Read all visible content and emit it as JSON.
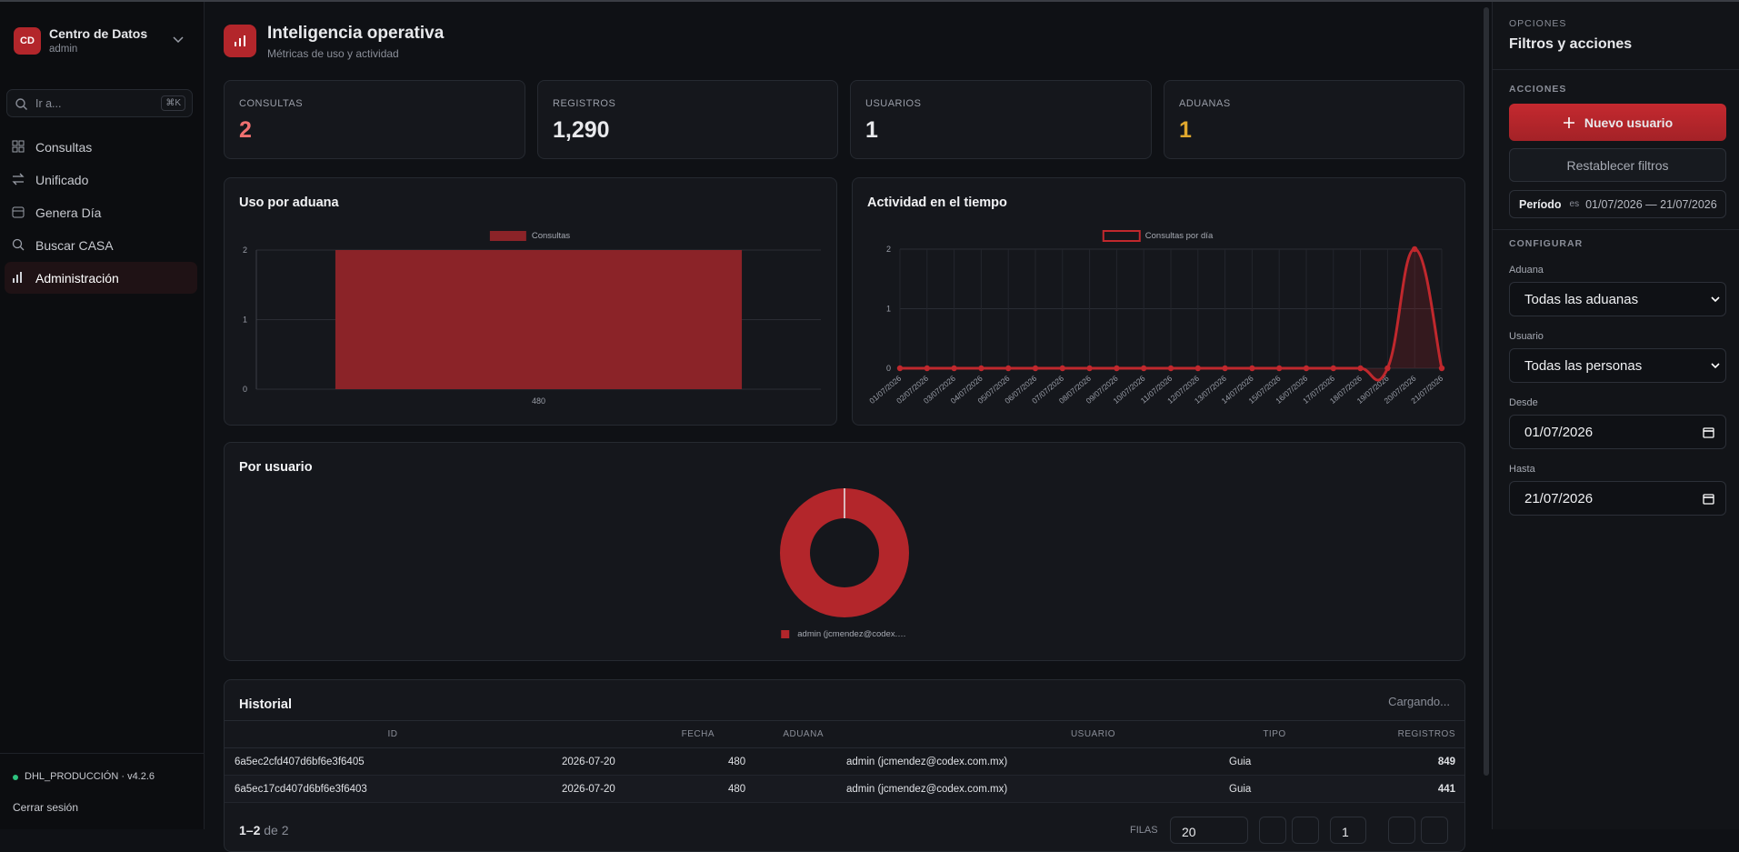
{
  "sidebar": {
    "logo": "CD",
    "title": "Centro de Datos",
    "subtitle": "admin",
    "search": {
      "placeholder": "Ir a...",
      "shortcut": "⌘K"
    },
    "nav": [
      "Consultas",
      "Unificado",
      "Genera Día",
      "Buscar CASA",
      "Administración"
    ],
    "env": "DHL_PRODUCCIÓN · v4.2.6",
    "logout": "Cerrar sesión"
  },
  "header": {
    "title": "Inteligencia operativa",
    "subtitle": "Métricas de uso y actividad"
  },
  "kpis": [
    {
      "label": "CONSULTAS",
      "value": "2"
    },
    {
      "label": "REGISTROS",
      "value": "1,290"
    },
    {
      "label": "USUARIOS",
      "value": "1"
    },
    {
      "label": "ADUANAS",
      "value": "1"
    }
  ],
  "chart_data": [
    {
      "type": "bar",
      "title": "Uso por aduana",
      "categories": [
        "480"
      ],
      "series": [
        {
          "name": "Consultas",
          "color": "#8b2328",
          "values": [
            2
          ]
        }
      ],
      "ylim": [
        0,
        2
      ],
      "yticks": [
        0,
        1,
        2
      ],
      "grid": true
    },
    {
      "type": "line",
      "title": "Actividad en el tiempo",
      "categories": [
        "01/07/2026",
        "02/07/2026",
        "03/07/2026",
        "04/07/2026",
        "05/07/2026",
        "06/07/2026",
        "07/07/2026",
        "08/07/2026",
        "09/07/2026",
        "10/07/2026",
        "11/07/2026",
        "12/07/2026",
        "13/07/2026",
        "14/07/2026",
        "15/07/2026",
        "16/07/2026",
        "17/07/2026",
        "18/07/2026",
        "19/07/2026",
        "20/07/2026",
        "21/07/2026"
      ],
      "series": [
        {
          "name": "Consultas por día",
          "color": "#c0282d",
          "values": [
            0,
            0,
            0,
            0,
            0,
            0,
            0,
            0,
            0,
            0,
            0,
            0,
            0,
            0,
            0,
            0,
            0,
            0,
            0,
            2,
            0
          ]
        }
      ],
      "ylim": [
        0,
        2
      ],
      "yticks": [
        0,
        1,
        2
      ],
      "grid": true
    },
    {
      "type": "doughnut",
      "title": "Por usuario",
      "categories": [
        "admin (jcmendez@codex.…"
      ],
      "values": [
        2
      ],
      "colors": [
        "#b3262b"
      ]
    }
  ],
  "table": {
    "title": "Historial",
    "status": "Cargando...",
    "columns": [
      "ID",
      "FECHA",
      "ADUANA",
      "USUARIO",
      "TIPO",
      "REGISTROS"
    ],
    "rows": [
      [
        "6a5ec2cfd407d6bf6e3f6405",
        "2026-07-20",
        "480",
        "admin (jcmendez@codex.com.mx)",
        "Guia",
        "849"
      ],
      [
        "6a5ec17cd407d6bf6e3f6403",
        "2026-07-20",
        "480",
        "admin (jcmendez@codex.com.mx)",
        "Guia",
        "441"
      ]
    ],
    "footer": {
      "range": "1–2",
      "of": "de 2",
      "rows_label": "FILAS",
      "rows_value": "20",
      "page": "1"
    }
  },
  "panel": {
    "kicker": "OPCIONES",
    "title": "Filtros y acciones",
    "actions_label": "ACCIONES",
    "new_user": "Nuevo usuario",
    "reset": "Restablecer filtros",
    "period": {
      "label": "Período",
      "op": "es",
      "value": "01/07/2026 — 21/07/2026"
    },
    "config_label": "CONFIGURAR",
    "fields": [
      {
        "label": "Aduana",
        "value": "Todas las aduanas"
      },
      {
        "label": "Usuario",
        "value": "Todas las personas"
      },
      {
        "label": "Desde",
        "value": "01/07/2026"
      },
      {
        "label": "Hasta",
        "value": "21/07/2026"
      }
    ]
  }
}
